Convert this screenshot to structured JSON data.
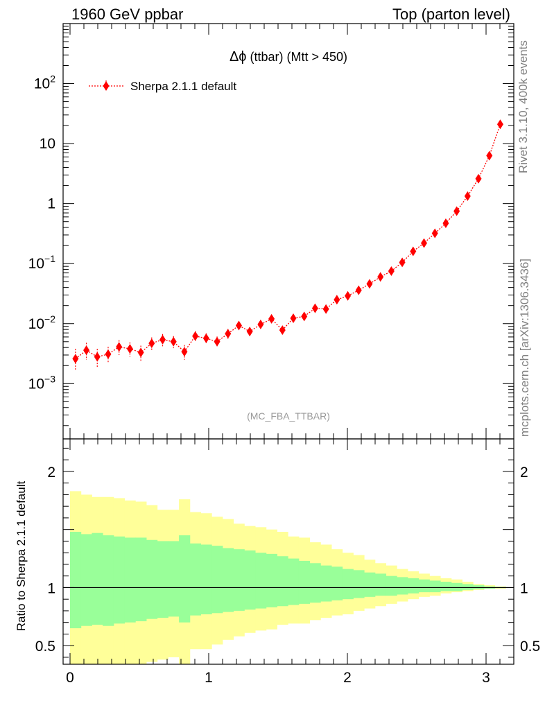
{
  "header": {
    "left": "1960 GeV ppbar",
    "right": "Top (parton level)"
  },
  "side_labels": {
    "rivet": "Rivet 3.1.10,  400k events",
    "source": "mcplots.cern.ch [arXiv:1306.3436]"
  },
  "watermark": "(MC_FBA_TTBAR)",
  "colors": {
    "series": "#ff0000",
    "band_outer": "#ffff99",
    "band_inner": "#99ff99"
  },
  "chart_data": [
    {
      "type": "scatter",
      "title_main": "Δϕ",
      "title_rest": " (ttbar) (Mtt > 450)",
      "xlabel": "",
      "ylabel": "",
      "yscale": "log",
      "xlim": [
        -0.05,
        3.2
      ],
      "ylim": [
        0.00012,
        1000
      ],
      "grid": false,
      "legend_position": "top-left",
      "y_tick_labels": [
        {
          "value": 0.001,
          "base": "10",
          "exp": "−3"
        },
        {
          "value": 0.01,
          "base": "10",
          "exp": "−2"
        },
        {
          "value": 0.1,
          "base": "10",
          "exp": "−1"
        },
        {
          "value": 1,
          "base": "1",
          "exp": ""
        },
        {
          "value": 10,
          "base": "10",
          "exp": ""
        },
        {
          "value": 100,
          "base": "10",
          "exp": "2"
        }
      ],
      "series": [
        {
          "name": "Sherpa 2.1.1 default",
          "x": [
            0.0393,
            0.1178,
            0.1963,
            0.2749,
            0.3534,
            0.432,
            0.5105,
            0.589,
            0.6676,
            0.7461,
            0.8247,
            0.9032,
            0.9817,
            1.0603,
            1.1388,
            1.2174,
            1.2959,
            1.3744,
            1.453,
            1.5315,
            1.6101,
            1.6886,
            1.7671,
            1.8457,
            1.9242,
            2.0028,
            2.0813,
            2.1598,
            2.2384,
            2.3169,
            2.3955,
            2.474,
            2.5525,
            2.6311,
            2.7096,
            2.7882,
            2.8667,
            2.9452,
            3.0238,
            3.1023
          ],
          "y": [
            0.0026,
            0.0036,
            0.0028,
            0.0031,
            0.0041,
            0.0038,
            0.0033,
            0.0047,
            0.0054,
            0.005,
            0.0034,
            0.0062,
            0.0057,
            0.005,
            0.0068,
            0.0093,
            0.0074,
            0.0097,
            0.012,
            0.0078,
            0.0123,
            0.0132,
            0.018,
            0.0175,
            0.025,
            0.029,
            0.036,
            0.046,
            0.06,
            0.075,
            0.105,
            0.16,
            0.22,
            0.32,
            0.47,
            0.75,
            1.33,
            2.6,
            6.3,
            21.0
          ],
          "y_err_low": [
            0.0009,
            0.0011,
            0.0009,
            0.0009,
            0.0011,
            0.001,
            0.0009,
            0.0011,
            0.0012,
            0.0011,
            0.0009,
            0.0012,
            0.0011,
            0.001,
            0.0012,
            0.0014,
            0.0012,
            0.0013,
            0.0015,
            0.0011,
            0.0014,
            0.0014,
            0.0016,
            0.0016,
            0.0018,
            0.0019,
            0.0021,
            0.0023,
            0.0026,
            0.0028,
            0.0033,
            0.004,
            0.0046,
            0.0054,
            0.0064,
            0.008,
            0.0105,
            0.015,
            0.023,
            0.043
          ],
          "y_err_high": [
            0.0012,
            0.0012,
            0.001,
            0.001,
            0.0012,
            0.0011,
            0.001,
            0.0012,
            0.0013,
            0.0012,
            0.001,
            0.0013,
            0.0012,
            0.0011,
            0.0013,
            0.0015,
            0.0013,
            0.0014,
            0.0016,
            0.0012,
            0.0015,
            0.0015,
            0.0017,
            0.0017,
            0.0019,
            0.002,
            0.0022,
            0.0024,
            0.0027,
            0.0029,
            0.0034,
            0.0041,
            0.0047,
            0.0055,
            0.0065,
            0.0081,
            0.0106,
            0.0151,
            0.0231,
            0.0431
          ]
        }
      ]
    },
    {
      "type": "area",
      "ylabel": "Ratio to Sherpa 2.1.1 default",
      "xlabel": "",
      "xlim": [
        -0.05,
        3.2
      ],
      "ylim": [
        0.34,
        2.28
      ],
      "x_tick_labels": [
        "0",
        "1",
        "2",
        "3"
      ],
      "y_tick_labels": [
        "0.5",
        "1",
        "2"
      ],
      "reference_line": 1,
      "bin_edges": [
        0.0,
        0.0785,
        0.1571,
        0.2356,
        0.3142,
        0.3927,
        0.4712,
        0.5498,
        0.6283,
        0.7069,
        0.7854,
        0.8639,
        0.9425,
        1.021,
        1.0996,
        1.1781,
        1.2566,
        1.3352,
        1.4137,
        1.4923,
        1.5708,
        1.6493,
        1.7279,
        1.8064,
        1.885,
        1.9635,
        2.042,
        2.1206,
        2.1991,
        2.2777,
        2.3562,
        2.4347,
        2.5133,
        2.5918,
        2.6704,
        2.7489,
        2.8274,
        2.906,
        2.9845,
        3.0631,
        3.1416
      ],
      "series": [
        {
          "name": "",
          "band": "outer",
          "upper": [
            1.83,
            1.8,
            1.78,
            1.78,
            1.77,
            1.75,
            1.74,
            1.71,
            1.67,
            1.67,
            1.76,
            1.65,
            1.64,
            1.61,
            1.59,
            1.55,
            1.53,
            1.52,
            1.5,
            1.48,
            1.44,
            1.43,
            1.39,
            1.37,
            1.33,
            1.3,
            1.28,
            1.24,
            1.21,
            1.19,
            1.16,
            1.14,
            1.12,
            1.1,
            1.08,
            1.07,
            1.05,
            1.03,
            1.02,
            1.01
          ],
          "lower": [
            0.3,
            0.33,
            0.32,
            0.31,
            0.3,
            0.31,
            0.32,
            0.36,
            0.38,
            0.4,
            0.3,
            0.47,
            0.47,
            0.51,
            0.55,
            0.58,
            0.61,
            0.63,
            0.64,
            0.68,
            0.69,
            0.69,
            0.72,
            0.74,
            0.76,
            0.77,
            0.8,
            0.82,
            0.84,
            0.86,
            0.88,
            0.9,
            0.92,
            0.93,
            0.95,
            0.96,
            0.97,
            0.98,
            0.99,
            0.99
          ]
        },
        {
          "name": "",
          "band": "inner",
          "upper": [
            1.48,
            1.46,
            1.47,
            1.45,
            1.44,
            1.43,
            1.43,
            1.41,
            1.4,
            1.4,
            1.45,
            1.38,
            1.37,
            1.36,
            1.34,
            1.33,
            1.32,
            1.3,
            1.29,
            1.27,
            1.25,
            1.23,
            1.21,
            1.19,
            1.18,
            1.16,
            1.15,
            1.13,
            1.12,
            1.1,
            1.09,
            1.08,
            1.07,
            1.06,
            1.05,
            1.04,
            1.03,
            1.02,
            1.01,
            1.005
          ],
          "lower": [
            0.65,
            0.67,
            0.68,
            0.67,
            0.69,
            0.7,
            0.71,
            0.73,
            0.74,
            0.75,
            0.7,
            0.76,
            0.77,
            0.78,
            0.79,
            0.8,
            0.81,
            0.82,
            0.83,
            0.84,
            0.85,
            0.86,
            0.87,
            0.88,
            0.89,
            0.9,
            0.91,
            0.92,
            0.93,
            0.93,
            0.94,
            0.95,
            0.96,
            0.96,
            0.97,
            0.97,
            0.98,
            0.985,
            0.99,
            0.995
          ]
        }
      ]
    }
  ]
}
